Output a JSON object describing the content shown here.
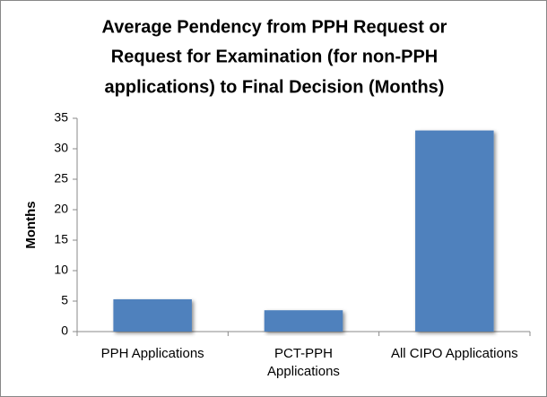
{
  "chart_data": {
    "type": "bar",
    "title_lines": [
      "Average Pendency from PPH Request or",
      "Request for Examination (for non-PPH",
      "applications) to Final Decision (Months)"
    ],
    "y_label": "Months",
    "categories": [
      "PPH Applications",
      "PCT-PPH Applications",
      "All CIPO Applications"
    ],
    "values": [
      5.3,
      3.5,
      33
    ],
    "color": "#4f81bd",
    "ylim": [
      0,
      35
    ],
    "yticks": [
      0,
      5,
      10,
      15,
      20,
      25,
      30,
      35
    ],
    "grid": false
  }
}
